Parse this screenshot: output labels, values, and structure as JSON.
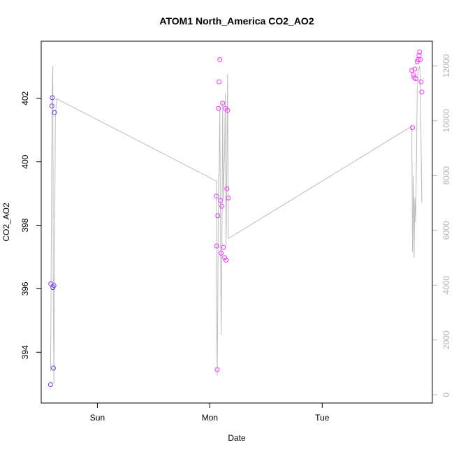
{
  "chart_data": {
    "type": "scatter",
    "title": "ATOM1 North_America CO2_AO2",
    "xlabel": "Date",
    "ylabel": "CO2_AO2",
    "x_ticks": [
      "Sun",
      "Mon",
      "Tue"
    ],
    "x_range_days": [
      0,
      3.48
    ],
    "x_tick_days": [
      0.5,
      1.5,
      2.5
    ],
    "ylim": [
      392.4,
      403.8
    ],
    "y_ticks": [
      394,
      396,
      398,
      400,
      402
    ],
    "y2lim": [
      -300,
      12900
    ],
    "y2_ticks": [
      0,
      2000,
      4000,
      6000,
      8000,
      10000,
      12000
    ],
    "colors": {
      "frame": "#000000",
      "secondary_axis": "#b5b5b5",
      "altitude_line": "#bdbdbd",
      "point_low": "#6633ff",
      "point_high": "#ff33ff"
    },
    "points": [
      {
        "x": 0.083,
        "y": 392.98,
        "color": "#7a33ff"
      },
      {
        "x": 0.086,
        "y": 396.16,
        "color": "#7733ff"
      },
      {
        "x": 0.095,
        "y": 401.76,
        "color": "#7333ff"
      },
      {
        "x": 0.099,
        "y": 402.02,
        "color": "#7033ff"
      },
      {
        "x": 0.104,
        "y": 396.04,
        "color": "#6f33ff"
      },
      {
        "x": 0.108,
        "y": 393.5,
        "color": "#6e33ff"
      },
      {
        "x": 0.113,
        "y": 396.1,
        "color": "#6d33ff"
      },
      {
        "x": 0.118,
        "y": 401.55,
        "color": "#6b33ff"
      },
      {
        "x": 1.557,
        "y": 398.92,
        "color": "#e833ff"
      },
      {
        "x": 1.562,
        "y": 397.35,
        "color": "#ea33ff"
      },
      {
        "x": 1.566,
        "y": 393.45,
        "color": "#eb33ff"
      },
      {
        "x": 1.571,
        "y": 398.3,
        "color": "#ec33ff"
      },
      {
        "x": 1.577,
        "y": 401.68,
        "color": "#ee33ff"
      },
      {
        "x": 1.583,
        "y": 402.52,
        "color": "#ef33ff"
      },
      {
        "x": 1.589,
        "y": 403.22,
        "color": "#f033ff"
      },
      {
        "x": 1.595,
        "y": 398.78,
        "color": "#f133ff"
      },
      {
        "x": 1.601,
        "y": 397.12,
        "color": "#f233ff"
      },
      {
        "x": 1.607,
        "y": 398.6,
        "color": "#f333ff"
      },
      {
        "x": 1.614,
        "y": 401.85,
        "color": "#f433ff"
      },
      {
        "x": 1.62,
        "y": 397.3,
        "color": "#f533ff"
      },
      {
        "x": 1.632,
        "y": 396.98,
        "color": "#f633ff"
      },
      {
        "x": 1.638,
        "y": 401.68,
        "color": "#f733ff"
      },
      {
        "x": 1.644,
        "y": 396.9,
        "color": "#f833ff"
      },
      {
        "x": 1.652,
        "y": 399.15,
        "color": "#f933ff"
      },
      {
        "x": 1.658,
        "y": 401.62,
        "color": "#fa33ff"
      },
      {
        "x": 1.665,
        "y": 398.86,
        "color": "#fb33ff"
      },
      {
        "x": 3.297,
        "y": 402.88,
        "color": "#ff33ff"
      },
      {
        "x": 3.303,
        "y": 401.08,
        "color": "#ff33ff"
      },
      {
        "x": 3.312,
        "y": 402.74,
        "color": "#ff33ff"
      },
      {
        "x": 3.318,
        "y": 402.66,
        "color": "#ff33ff"
      },
      {
        "x": 3.324,
        "y": 402.92,
        "color": "#ff33ff"
      },
      {
        "x": 3.332,
        "y": 402.62,
        "color": "#ff33ff"
      },
      {
        "x": 3.345,
        "y": 403.15,
        "color": "#ff33ff"
      },
      {
        "x": 3.353,
        "y": 403.22,
        "color": "#ff33ff"
      },
      {
        "x": 3.361,
        "y": 403.35,
        "color": "#ff33ff"
      },
      {
        "x": 3.367,
        "y": 403.46,
        "color": "#ff33ff"
      },
      {
        "x": 3.373,
        "y": 403.22,
        "color": "#ff33ff"
      },
      {
        "x": 3.38,
        "y": 402.52,
        "color": "#ff33ff"
      },
      {
        "x": 3.386,
        "y": 402.2,
        "color": "#ff33ff"
      }
    ],
    "altitude_series": [
      {
        "x": 0.083,
        "y": 850
      },
      {
        "x": 0.091,
        "y": 6200
      },
      {
        "x": 0.097,
        "y": 11000
      },
      {
        "x": 0.103,
        "y": 12000
      },
      {
        "x": 0.108,
        "y": 3000
      },
      {
        "x": 0.113,
        "y": 400
      },
      {
        "x": 0.119,
        "y": 5000
      },
      {
        "x": 0.126,
        "y": 10200
      },
      {
        "x": 0.138,
        "y": 10800
      },
      {
        "x": 1.557,
        "y": 7800
      },
      {
        "x": 1.561,
        "y": 2500
      },
      {
        "x": 1.566,
        "y": 700
      },
      {
        "x": 1.571,
        "y": 3500
      },
      {
        "x": 1.577,
        "y": 8000
      },
      {
        "x": 1.583,
        "y": 8000
      },
      {
        "x": 1.589,
        "y": 10500
      },
      {
        "x": 1.595,
        "y": 6000
      },
      {
        "x": 1.601,
        "y": 2200
      },
      {
        "x": 1.607,
        "y": 5000
      },
      {
        "x": 1.614,
        "y": 10700
      },
      {
        "x": 1.62,
        "y": 7100
      },
      {
        "x": 1.632,
        "y": 9000
      },
      {
        "x": 1.638,
        "y": 11000
      },
      {
        "x": 1.644,
        "y": 5400
      },
      {
        "x": 1.652,
        "y": 8300
      },
      {
        "x": 1.658,
        "y": 11700
      },
      {
        "x": 1.665,
        "y": 5700
      },
      {
        "x": 3.297,
        "y": 9800
      },
      {
        "x": 3.303,
        "y": 5200
      },
      {
        "x": 3.312,
        "y": 8000
      },
      {
        "x": 3.318,
        "y": 5000
      },
      {
        "x": 3.324,
        "y": 7200
      },
      {
        "x": 3.332,
        "y": 6300
      },
      {
        "x": 3.345,
        "y": 11000
      },
      {
        "x": 3.353,
        "y": 11800
      },
      {
        "x": 3.361,
        "y": 11900
      },
      {
        "x": 3.367,
        "y": 12000
      },
      {
        "x": 3.373,
        "y": 11600
      },
      {
        "x": 3.38,
        "y": 9000
      },
      {
        "x": 3.386,
        "y": 7000
      }
    ]
  }
}
